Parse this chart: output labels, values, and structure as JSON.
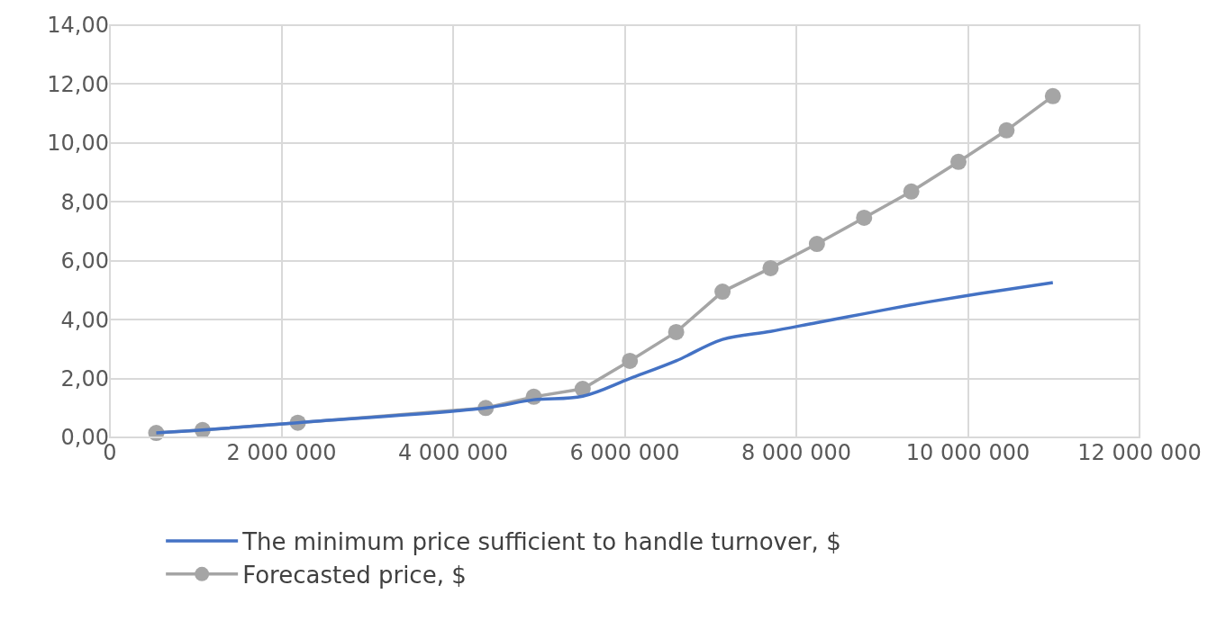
{
  "chart_data": {
    "type": "line",
    "grid": true,
    "legend": "bottom",
    "xlim": [
      0,
      12000000
    ],
    "ylim": [
      0,
      14
    ],
    "xticks": [
      {
        "value": 0,
        "label": "0"
      },
      {
        "value": 2000000,
        "label": "2 000 000"
      },
      {
        "value": 4000000,
        "label": "4 000 000"
      },
      {
        "value": 6000000,
        "label": "6 000 000"
      },
      {
        "value": 8000000,
        "label": "8 000 000"
      },
      {
        "value": 10000000,
        "label": "10 000 000"
      },
      {
        "value": 12000000,
        "label": "12 000 000"
      }
    ],
    "yticks": [
      {
        "value": 0,
        "label": "0,00"
      },
      {
        "value": 2,
        "label": "2,00"
      },
      {
        "value": 4,
        "label": "4,00"
      },
      {
        "value": 6,
        "label": "6,00"
      },
      {
        "value": 8,
        "label": "8,00"
      },
      {
        "value": 10,
        "label": "10,00"
      },
      {
        "value": 12,
        "label": "12,00"
      },
      {
        "value": 14,
        "label": "14,00"
      }
    ],
    "x": [
      540000,
      1080000,
      2190000,
      4380000,
      4940000,
      5510000,
      6060000,
      6600000,
      7140000,
      7700000,
      8240000,
      8790000,
      9340000,
      9890000,
      10450000,
      10990000
    ],
    "series": [
      {
        "name": "The minimum price sufficient to handle turnover, $",
        "color": "#4472c4",
        "marker": "none",
        "values": [
          0.15,
          0.25,
          0.5,
          1.0,
          1.28,
          1.4,
          2.0,
          2.6,
          3.33,
          3.6,
          3.9,
          4.2,
          4.5,
          4.77,
          5.02,
          5.26
        ]
      },
      {
        "name": "Forecasted price, $",
        "color": "#a5a5a5",
        "marker": "circle",
        "values": [
          0.15,
          0.25,
          0.5,
          1.0,
          1.38,
          1.65,
          2.6,
          3.58,
          4.95,
          5.75,
          6.57,
          7.46,
          8.35,
          9.36,
          10.43,
          11.59
        ]
      }
    ]
  }
}
